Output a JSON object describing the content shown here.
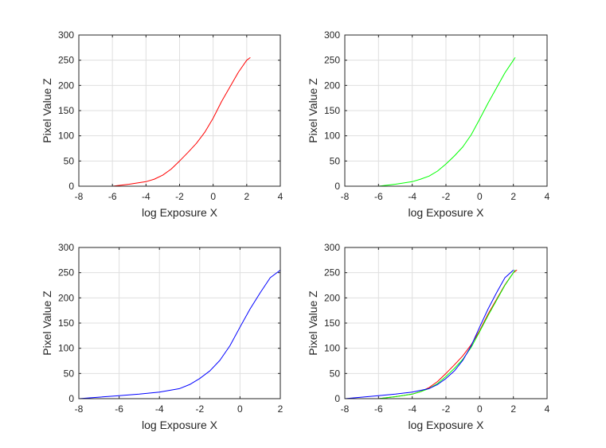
{
  "chart_data": [
    {
      "type": "line",
      "xlabel": "log Exposure X",
      "ylabel": "Pixel Value Z",
      "xlim": [
        -8,
        4
      ],
      "ylim": [
        0,
        300
      ],
      "xticks": [
        "-8",
        "-6",
        "-4",
        "-2",
        "0",
        "2",
        "4"
      ],
      "yticks": [
        "0",
        "50",
        "100",
        "150",
        "200",
        "250",
        "300"
      ],
      "grid": true,
      "series": [
        {
          "color": "#ff0000",
          "x": [
            -6.0,
            -5.0,
            -4.0,
            -3.5,
            -3.0,
            -2.5,
            -2.0,
            -1.5,
            -1.0,
            -0.5,
            0.0,
            0.5,
            1.0,
            1.5,
            2.0,
            2.2
          ],
          "y": [
            0,
            4,
            9,
            14,
            22,
            34,
            50,
            67,
            85,
            107,
            135,
            168,
            197,
            226,
            250,
            255
          ]
        }
      ]
    },
    {
      "type": "line",
      "xlabel": "log Exposure X",
      "ylabel": "Pixel Value Z",
      "xlim": [
        -8,
        4
      ],
      "ylim": [
        0,
        300
      ],
      "xticks": [
        "-8",
        "-6",
        "-4",
        "-2",
        "0",
        "2",
        "4"
      ],
      "yticks": [
        "0",
        "50",
        "100",
        "150",
        "200",
        "250",
        "300"
      ],
      "grid": true,
      "series": [
        {
          "color": "#00ff00",
          "x": [
            -6.0,
            -5.0,
            -4.0,
            -3.5,
            -3.0,
            -2.5,
            -2.0,
            -1.5,
            -1.0,
            -0.5,
            0.0,
            0.5,
            1.0,
            1.5,
            2.0,
            2.1
          ],
          "y": [
            0,
            4,
            9,
            14,
            20,
            30,
            44,
            60,
            78,
            102,
            133,
            165,
            195,
            225,
            250,
            255
          ]
        }
      ]
    },
    {
      "type": "line",
      "xlabel": "log Exposure X",
      "ylabel": "Pixel Value Z",
      "xlim": [
        -8,
        2
      ],
      "ylim": [
        0,
        300
      ],
      "xticks": [
        "-8",
        "-6",
        "-4",
        "-2",
        "0",
        "2"
      ],
      "yticks": [
        "0",
        "50",
        "100",
        "150",
        "200",
        "250",
        "300"
      ],
      "grid": true,
      "series": [
        {
          "color": "#0000ff",
          "x": [
            -8.0,
            -7.0,
            -6.0,
            -5.0,
            -4.0,
            -3.0,
            -2.5,
            -2.0,
            -1.5,
            -1.0,
            -0.5,
            0.0,
            0.5,
            1.0,
            1.5,
            2.0
          ],
          "y": [
            0,
            3,
            6,
            9,
            13,
            20,
            28,
            40,
            55,
            76,
            105,
            142,
            178,
            210,
            240,
            255
          ]
        }
      ]
    },
    {
      "type": "line",
      "xlabel": "log Exposure X",
      "ylabel": "Pixel Value Z",
      "xlim": [
        -8,
        4
      ],
      "ylim": [
        0,
        300
      ],
      "xticks": [
        "-8",
        "-6",
        "-4",
        "-2",
        "0",
        "2",
        "4"
      ],
      "yticks": [
        "0",
        "50",
        "100",
        "150",
        "200",
        "250",
        "300"
      ],
      "grid": true,
      "series": [
        {
          "color": "#ff0000",
          "x": [
            -6.0,
            -5.0,
            -4.0,
            -3.5,
            -3.0,
            -2.5,
            -2.0,
            -1.5,
            -1.0,
            -0.5,
            0.0,
            0.5,
            1.0,
            1.5,
            2.0,
            2.2
          ],
          "y": [
            0,
            4,
            9,
            14,
            22,
            34,
            50,
            67,
            85,
            107,
            135,
            168,
            197,
            226,
            250,
            255
          ]
        },
        {
          "color": "#00ff00",
          "x": [
            -6.0,
            -5.0,
            -4.0,
            -3.5,
            -3.0,
            -2.5,
            -2.0,
            -1.5,
            -1.0,
            -0.5,
            0.0,
            0.5,
            1.0,
            1.5,
            2.0,
            2.1
          ],
          "y": [
            0,
            4,
            9,
            14,
            20,
            30,
            44,
            60,
            78,
            102,
            133,
            165,
            195,
            225,
            250,
            255
          ]
        },
        {
          "color": "#0000ff",
          "x": [
            -8.0,
            -7.0,
            -6.0,
            -5.0,
            -4.0,
            -3.0,
            -2.5,
            -2.0,
            -1.5,
            -1.0,
            -0.5,
            0.0,
            0.5,
            1.0,
            1.5,
            2.0
          ],
          "y": [
            0,
            3,
            6,
            9,
            13,
            20,
            28,
            40,
            55,
            76,
            105,
            142,
            178,
            210,
            240,
            255
          ]
        }
      ]
    }
  ]
}
